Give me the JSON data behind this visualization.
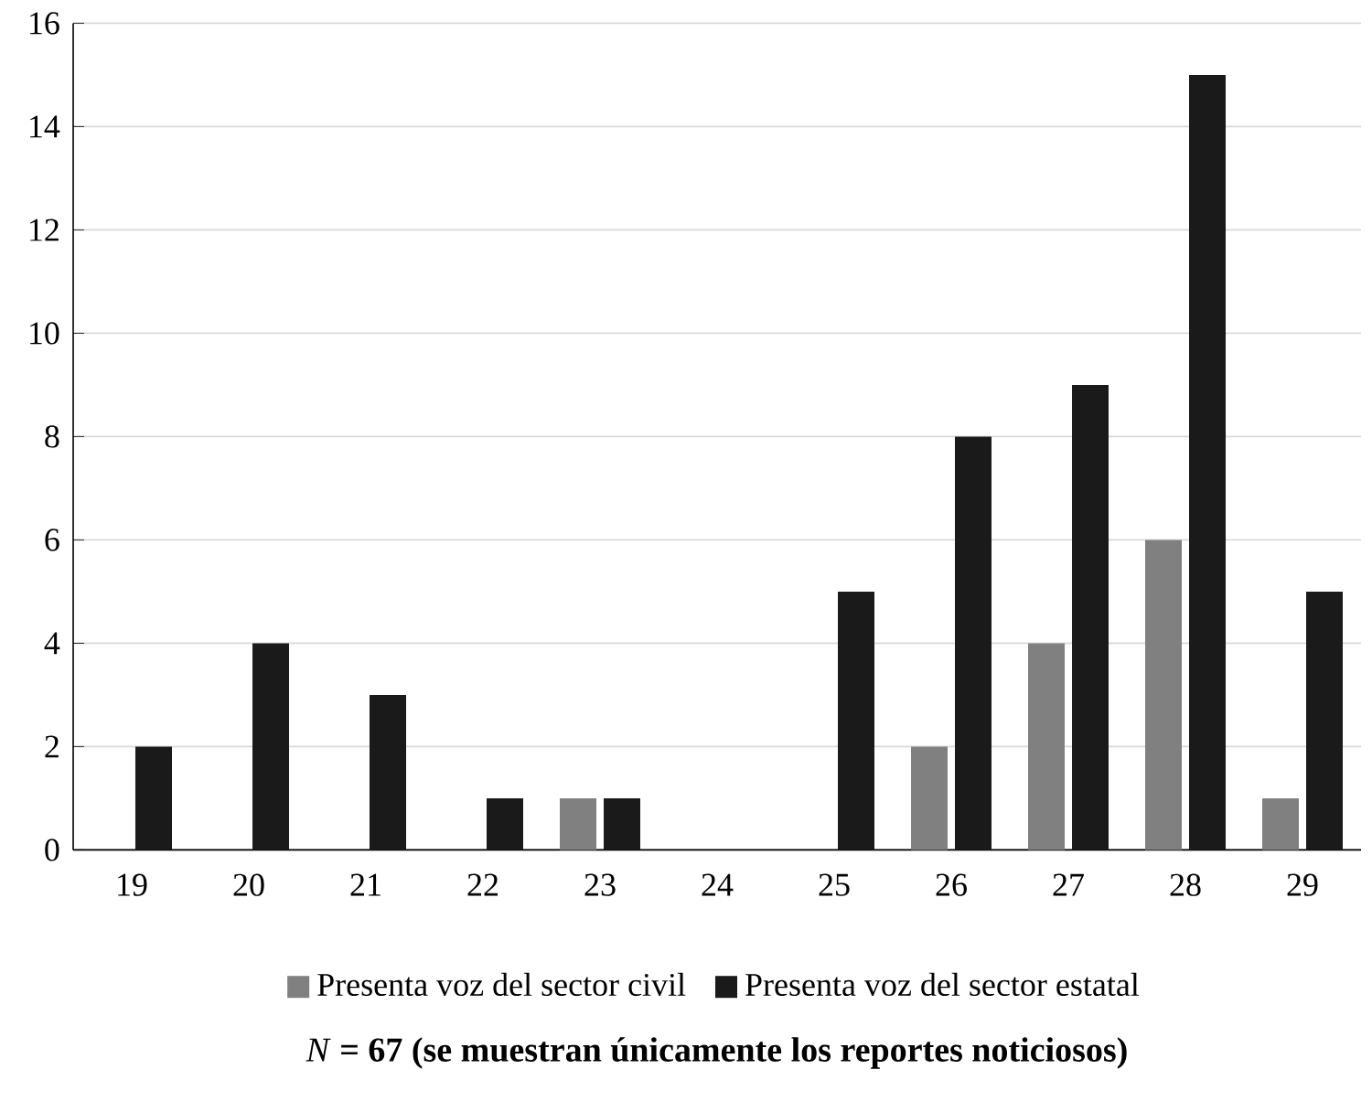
{
  "chart_data": {
    "type": "bar",
    "categories": [
      "19",
      "20",
      "21",
      "22",
      "23",
      "24",
      "25",
      "26",
      "27",
      "28",
      "29"
    ],
    "series": [
      {
        "name": "Presenta voz del sector civil",
        "color": "#808080",
        "values": [
          0,
          0,
          0,
          0,
          1,
          0,
          0,
          2,
          4,
          6,
          1
        ]
      },
      {
        "name": "Presenta voz del sector estatal",
        "color": "#1a1a1a",
        "values": [
          2,
          4,
          3,
          1,
          1,
          0,
          5,
          8,
          9,
          15,
          5
        ]
      }
    ],
    "ylim": [
      0,
      16
    ],
    "yticks": [
      0,
      2,
      4,
      6,
      8,
      10,
      12,
      14,
      16
    ],
    "grid": "y",
    "legend": "bottom",
    "annotations": [
      "*N* **= 67 (se muestran únicamente los reportes noticiosos)**"
    ]
  }
}
